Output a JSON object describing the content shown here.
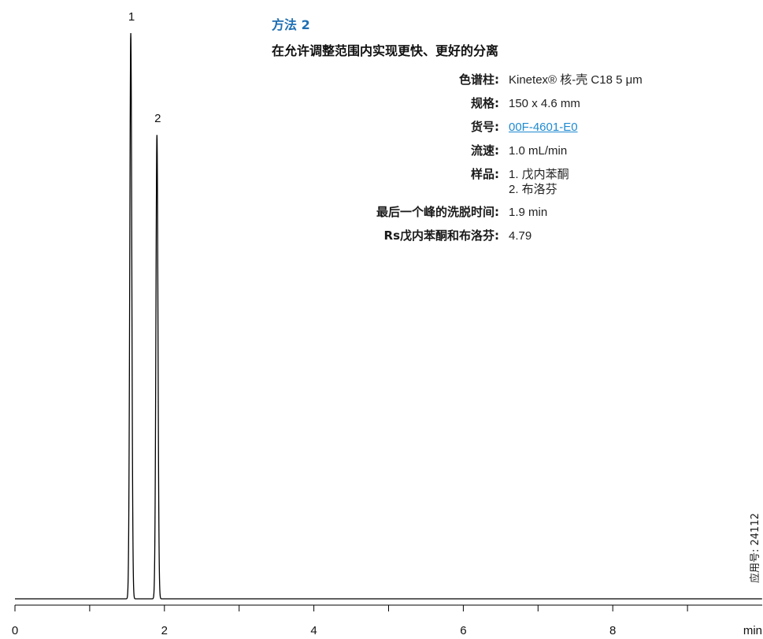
{
  "method": {
    "title": "方法 2",
    "subtitle": "在允许调整范围内实现更快、更好的分离"
  },
  "specs": [
    {
      "label": "色谱柱:",
      "value": "Kinetex® 核-壳 C18 5 μm"
    },
    {
      "label": "规格:",
      "value": "150 x 4.6 mm"
    },
    {
      "label": "货号:",
      "value": "00F-4601-E0",
      "link": true
    },
    {
      "label": "流速:",
      "value": "1.0 mL/min"
    },
    {
      "label": "样品:",
      "value": [
        "1. 戊内苯酮",
        "2. 布洛芬"
      ]
    },
    {
      "label": "最后一个峰的洗脱时间:",
      "value": "1.9 min"
    },
    {
      "label": "Rs戊内苯酮和布洛芬:",
      "value": "4.79"
    }
  ],
  "app_note": "应用号: 24112",
  "colors": {
    "accent": "#1f6fb3",
    "link": "#1f8ad1",
    "trace": "#000000"
  },
  "chart_data": {
    "type": "line",
    "xlabel": "min",
    "xlim": [
      0,
      10
    ],
    "x_ticks": [
      0,
      2,
      4,
      6,
      8
    ],
    "tick_labels": [
      "0",
      "2",
      "4",
      "6",
      "8"
    ],
    "peaks": [
      {
        "label": "1",
        "time": 1.55,
        "height": 1.0,
        "width": 0.03
      },
      {
        "label": "2",
        "time": 1.9,
        "height": 0.82,
        "width": 0.03
      }
    ],
    "baseline": 0
  }
}
